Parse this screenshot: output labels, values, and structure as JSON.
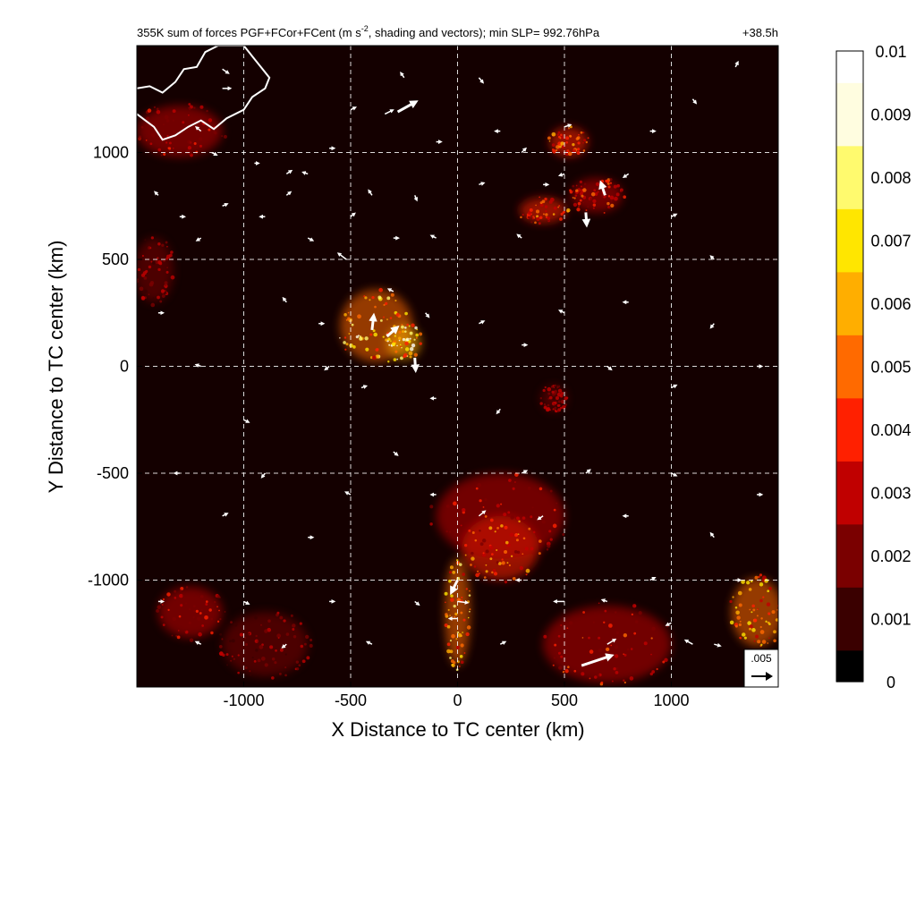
{
  "chart_data": {
    "type": "heatmap",
    "title": "355K sum of forces PGF+FCor+FCent (m s⁻², shading and vectors); min SLP= 992.76hPa",
    "title_main": "355K sum of forces PGF+FCor+FCent (m s",
    "title_sup": "-2",
    "title_rest": ", shading and vectors); min SLP= 992.76hPa",
    "forecast_time": "+38.5h",
    "xlabel": "X Distance to TC center (km)",
    "ylabel": "Y Distance to TC center (km)",
    "xlim": [
      -1500,
      1500
    ],
    "ylim": [
      -1500,
      1500
    ],
    "x_ticks": [
      -1000,
      -500,
      0,
      500,
      1000
    ],
    "x_tick_labels": [
      "-1000",
      "-500",
      "0",
      "500",
      "1000"
    ],
    "y_ticks": [
      1000,
      500,
      0,
      -500,
      -1000
    ],
    "y_tick_labels": [
      "1000",
      "500",
      "0",
      "-500",
      "-1000"
    ],
    "grid": true,
    "grid_style": "dashed white",
    "colorbar": {
      "range": [
        0,
        0.01
      ],
      "tick_labels": [
        "0",
        "0.001",
        "0.002",
        "0.003",
        "0.004",
        "0.005",
        "0.006",
        "0.007",
        "0.008",
        "0.009",
        "0.01"
      ],
      "tick_values": [
        0,
        0.001,
        0.002,
        0.003,
        0.004,
        0.005,
        0.006,
        0.007,
        0.008,
        0.009,
        0.01
      ],
      "colormap": [
        "#000000",
        "#3a0000",
        "#7a0000",
        "#c00000",
        "#ff2000",
        "#ff6a00",
        "#ffae00",
        "#ffe600",
        "#fffa6e",
        "#fffde0",
        "#ffffff"
      ]
    },
    "reference_vector": {
      "label": ".005",
      "magnitude": 0.005
    },
    "hotspots": [
      {
        "x": -380,
        "y": 190,
        "rx": 170,
        "ry": 170,
        "intensity": 0.0055
      },
      {
        "x": -250,
        "y": 110,
        "rx": 80,
        "ry": 80,
        "intensity": 0.0065
      },
      {
        "x": 520,
        "y": 1050,
        "rx": 90,
        "ry": 70,
        "intensity": 0.004
      },
      {
        "x": 400,
        "y": 730,
        "rx": 110,
        "ry": 60,
        "intensity": 0.0035
      },
      {
        "x": 650,
        "y": 800,
        "rx": 120,
        "ry": 80,
        "intensity": 0.003
      },
      {
        "x": -1300,
        "y": 1100,
        "rx": 200,
        "ry": 120,
        "intensity": 0.0025
      },
      {
        "x": -1420,
        "y": 450,
        "rx": 90,
        "ry": 150,
        "intensity": 0.002
      },
      {
        "x": 0,
        "y": -1150,
        "rx": 60,
        "ry": 250,
        "intensity": 0.0055
      },
      {
        "x": 200,
        "y": -850,
        "rx": 180,
        "ry": 150,
        "intensity": 0.004
      },
      {
        "x": 700,
        "y": -1300,
        "rx": 300,
        "ry": 180,
        "intensity": 0.003
      },
      {
        "x": 1400,
        "y": -1150,
        "rx": 120,
        "ry": 160,
        "intensity": 0.0045
      },
      {
        "x": -1250,
        "y": -1150,
        "rx": 150,
        "ry": 120,
        "intensity": 0.0025
      },
      {
        "x": -900,
        "y": -1300,
        "rx": 200,
        "ry": 150,
        "intensity": 0.002
      },
      {
        "x": 450,
        "y": -150,
        "rx": 60,
        "ry": 60,
        "intensity": 0.002
      },
      {
        "x": 200,
        "y": -700,
        "rx": 300,
        "ry": 200,
        "intensity": 0.0025
      }
    ],
    "vectors": [
      {
        "x": -280,
        "y": 1190,
        "u": 0.0045,
        "v": 0.0025
      },
      {
        "x": -330,
        "y": 140,
        "u": 0.0025,
        "v": 0.0022
      },
      {
        "x": -400,
        "y": 170,
        "u": 0.0004,
        "v": 0.0035
      },
      {
        "x": -200,
        "y": 40,
        "u": 0.0002,
        "v": -0.003
      },
      {
        "x": -520,
        "y": 500,
        "u": -0.002,
        "v": 0.0015
      },
      {
        "x": -340,
        "y": 1180,
        "u": 0.002,
        "v": 0.001
      },
      {
        "x": 580,
        "y": -1400,
        "u": 0.0075,
        "v": 0.0025
      },
      {
        "x": 600,
        "y": 720,
        "u": 0.0002,
        "v": -0.003
      },
      {
        "x": 690,
        "y": 800,
        "u": -0.001,
        "v": 0.003
      },
      {
        "x": 0,
        "y": -1000,
        "u": -0.0015,
        "v": -0.003
      },
      {
        "x": 0,
        "y": -1100,
        "u": 0.0025,
        "v": -0.0003
      },
      {
        "x": 0,
        "y": -1180,
        "u": -0.002,
        "v": 0.0
      },
      {
        "x": 100,
        "y": -700,
        "u": 0.0015,
        "v": 0.0012
      },
      {
        "x": 500,
        "y": -1100,
        "u": -0.0025,
        "v": 0.0
      },
      {
        "x": 700,
        "y": -1300,
        "u": 0.002,
        "v": 0.0012
      },
      {
        "x": 1100,
        "y": -1300,
        "u": -0.0018,
        "v": 0.001
      },
      {
        "x": 1200,
        "y": -1300,
        "u": 0.0015,
        "v": -0.0004
      },
      {
        "x": -1100,
        "y": 1390,
        "u": 0.0015,
        "v": -0.001
      },
      {
        "x": -1100,
        "y": 1300,
        "u": 0.002,
        "v": 0.0
      },
      {
        "x": -1200,
        "y": 1100,
        "u": -0.0012,
        "v": 0.001
      },
      {
        "x": -1150,
        "y": 1000,
        "u": 0.0012,
        "v": -0.0006
      },
      {
        "x": -950,
        "y": 950,
        "u": 0.001,
        "v": 0.0
      },
      {
        "x": -800,
        "y": 900,
        "u": 0.0012,
        "v": 0.0008
      },
      {
        "x": -700,
        "y": 900,
        "u": -0.0012,
        "v": 0.0004
      },
      {
        "x": -600,
        "y": 1020,
        "u": 0.0012,
        "v": 0.0
      },
      {
        "x": -500,
        "y": 1200,
        "u": 0.0012,
        "v": 0.0006
      },
      {
        "x": -250,
        "y": 1350,
        "u": -0.0008,
        "v": 0.0012
      },
      {
        "x": -100,
        "y": 1050,
        "u": 0.0012,
        "v": 0.0
      },
      {
        "x": 100,
        "y": 1350,
        "u": 0.001,
        "v": -0.0012
      },
      {
        "x": 200,
        "y": 1100,
        "u": -0.0012,
        "v": 0.0
      },
      {
        "x": 300,
        "y": 1000,
        "u": 0.001,
        "v": 0.001
      },
      {
        "x": 500,
        "y": 1120,
        "u": 0.0015,
        "v": 0.0005
      },
      {
        "x": 800,
        "y": 900,
        "u": -0.0012,
        "v": -0.0008
      },
      {
        "x": 900,
        "y": 1100,
        "u": 0.0012,
        "v": 0.0
      },
      {
        "x": 1100,
        "y": 1250,
        "u": 0.0008,
        "v": -0.001
      },
      {
        "x": 1300,
        "y": 1400,
        "u": 0.0006,
        "v": 0.0012
      },
      {
        "x": -1400,
        "y": 800,
        "u": -0.0008,
        "v": 0.0008
      },
      {
        "x": -1300,
        "y": 700,
        "u": 0.0012,
        "v": 0.0
      },
      {
        "x": -1200,
        "y": 600,
        "u": -0.001,
        "v": -0.0006
      },
      {
        "x": -1100,
        "y": 750,
        "u": 0.0012,
        "v": 0.0005
      },
      {
        "x": -900,
        "y": 700,
        "u": -0.0012,
        "v": 0.0
      },
      {
        "x": -800,
        "y": 800,
        "u": 0.001,
        "v": 0.0008
      },
      {
        "x": -700,
        "y": 600,
        "u": 0.0012,
        "v": -0.0006
      },
      {
        "x": -500,
        "y": 700,
        "u": 0.001,
        "v": 0.0008
      },
      {
        "x": -400,
        "y": 800,
        "u": -0.0008,
        "v": 0.0012
      },
      {
        "x": -300,
        "y": 600,
        "u": 0.0012,
        "v": 0.0
      },
      {
        "x": -200,
        "y": 800,
        "u": 0.0005,
        "v": -0.0012
      },
      {
        "x": -100,
        "y": 600,
        "u": -0.0012,
        "v": 0.0006
      },
      {
        "x": 100,
        "y": 850,
        "u": 0.0012,
        "v": 0.0004
      },
      {
        "x": 300,
        "y": 600,
        "u": -0.001,
        "v": 0.0008
      },
      {
        "x": 400,
        "y": 850,
        "u": 0.0012,
        "v": 0.0
      },
      {
        "x": 500,
        "y": 900,
        "u": -0.0012,
        "v": -0.0004
      },
      {
        "x": 1000,
        "y": 700,
        "u": 0.0012,
        "v": 0.0006
      },
      {
        "x": 1200,
        "y": 500,
        "u": -0.0008,
        "v": 0.0008
      },
      {
        "x": -1400,
        "y": 250,
        "u": 0.0012,
        "v": 0.0
      },
      {
        "x": -1200,
        "y": 0,
        "u": -0.0012,
        "v": 0.0004
      },
      {
        "x": -1000,
        "y": -250,
        "u": 0.0012,
        "v": -0.0006
      },
      {
        "x": -800,
        "y": 300,
        "u": -0.0008,
        "v": 0.001
      },
      {
        "x": -650,
        "y": 200,
        "u": 0.0012,
        "v": 0.0
      },
      {
        "x": -600,
        "y": 0,
        "u": -0.001,
        "v": -0.0008
      },
      {
        "x": -450,
        "y": -100,
        "u": 0.0012,
        "v": 0.0004
      },
      {
        "x": -300,
        "y": 350,
        "u": -0.0012,
        "v": 0.0006
      },
      {
        "x": -150,
        "y": 250,
        "u": 0.0008,
        "v": -0.001
      },
      {
        "x": -100,
        "y": -150,
        "u": -0.0012,
        "v": 0.0
      },
      {
        "x": 100,
        "y": 200,
        "u": 0.0012,
        "v": 0.0006
      },
      {
        "x": 200,
        "y": -200,
        "u": -0.0008,
        "v": -0.001
      },
      {
        "x": 300,
        "y": 100,
        "u": 0.0012,
        "v": 0.0
      },
      {
        "x": 500,
        "y": 250,
        "u": -0.0012,
        "v": 0.0006
      },
      {
        "x": 700,
        "y": 0,
        "u": 0.001,
        "v": -0.0008
      },
      {
        "x": 800,
        "y": 300,
        "u": -0.0012,
        "v": 0.0
      },
      {
        "x": 1000,
        "y": -100,
        "u": 0.0012,
        "v": 0.0006
      },
      {
        "x": 1200,
        "y": 200,
        "u": -0.0008,
        "v": -0.001
      },
      {
        "x": 1400,
        "y": 0,
        "u": 0.0012,
        "v": 0.0
      },
      {
        "x": -1300,
        "y": -500,
        "u": -0.0012,
        "v": 0.0
      },
      {
        "x": -1100,
        "y": -700,
        "u": 0.0012,
        "v": 0.0006
      },
      {
        "x": -900,
        "y": -500,
        "u": -0.0008,
        "v": -0.001
      },
      {
        "x": -700,
        "y": -800,
        "u": 0.0012,
        "v": 0.0
      },
      {
        "x": -500,
        "y": -600,
        "u": -0.0012,
        "v": 0.0006
      },
      {
        "x": -300,
        "y": -400,
        "u": 0.001,
        "v": -0.0008
      },
      {
        "x": -100,
        "y": -600,
        "u": -0.0012,
        "v": 0.0
      },
      {
        "x": 300,
        "y": -500,
        "u": 0.0012,
        "v": 0.0006
      },
      {
        "x": 400,
        "y": -700,
        "u": -0.0012,
        "v": -0.0008
      },
      {
        "x": 600,
        "y": -500,
        "u": 0.001,
        "v": 0.0008
      },
      {
        "x": 800,
        "y": -700,
        "u": -0.0012,
        "v": 0.0
      },
      {
        "x": 1000,
        "y": -500,
        "u": 0.0012,
        "v": -0.0006
      },
      {
        "x": 1200,
        "y": -800,
        "u": -0.0008,
        "v": 0.001
      },
      {
        "x": 1400,
        "y": -600,
        "u": 0.0012,
        "v": 0.0
      },
      {
        "x": -1400,
        "y": -1100,
        "u": 0.0012,
        "v": 0.0
      },
      {
        "x": -1200,
        "y": -1300,
        "u": -0.0012,
        "v": 0.0006
      },
      {
        "x": -1000,
        "y": -1100,
        "u": 0.0012,
        "v": -0.0006
      },
      {
        "x": -800,
        "y": -1300,
        "u": -0.001,
        "v": -0.0008
      },
      {
        "x": -600,
        "y": -1100,
        "u": 0.0012,
        "v": 0.0
      },
      {
        "x": -400,
        "y": -1300,
        "u": -0.0012,
        "v": 0.0006
      },
      {
        "x": -200,
        "y": -1100,
        "u": 0.001,
        "v": -0.0008
      },
      {
        "x": 200,
        "y": -1300,
        "u": 0.0012,
        "v": 0.0006
      },
      {
        "x": 300,
        "y": -1000,
        "u": -0.0012,
        "v": 0.0
      },
      {
        "x": 700,
        "y": -1100,
        "u": -0.0012,
        "v": 0.0004
      },
      {
        "x": 900,
        "y": -1000,
        "u": 0.0012,
        "v": 0.0006
      },
      {
        "x": 1000,
        "y": -1200,
        "u": -0.0012,
        "v": -0.0006
      },
      {
        "x": 1300,
        "y": -1000,
        "u": 0.0012,
        "v": 0.0
      }
    ],
    "coastline": [
      [
        -1500,
        1300
      ],
      [
        -1440,
        1310
      ],
      [
        -1380,
        1280
      ],
      [
        -1320,
        1330
      ],
      [
        -1280,
        1390
      ],
      [
        -1220,
        1400
      ],
      [
        -1180,
        1470
      ],
      [
        -1120,
        1500
      ],
      [
        -1000,
        1500
      ],
      [
        -960,
        1450
      ],
      [
        -920,
        1400
      ],
      [
        -880,
        1350
      ],
      [
        -900,
        1300
      ],
      [
        -960,
        1260
      ],
      [
        -1000,
        1200
      ],
      [
        -1080,
        1160
      ],
      [
        -1140,
        1110
      ],
      [
        -1200,
        1150
      ],
      [
        -1260,
        1120
      ],
      [
        -1320,
        1080
      ],
      [
        -1380,
        1060
      ],
      [
        -1420,
        1120
      ],
      [
        -1460,
        1150
      ],
      [
        -1500,
        1180
      ]
    ]
  }
}
